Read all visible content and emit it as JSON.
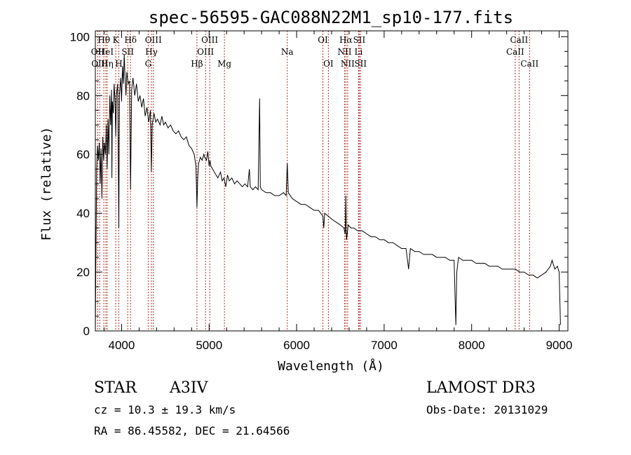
{
  "chart_data": {
    "type": "line",
    "title": "spec-56595-GAC088N22M1_sp10-177.fits",
    "xlabel": "Wavelength (Å)",
    "ylabel": "Flux (relative)",
    "xlim": [
      3700,
      9100
    ],
    "ylim": [
      0,
      102
    ],
    "x_ticks": [
      4000,
      5000,
      6000,
      7000,
      8000,
      9000
    ],
    "y_ticks": [
      0,
      20,
      40,
      60,
      80,
      100
    ],
    "series": [
      {
        "name": "flux",
        "points": [
          [
            3700,
            0
          ],
          [
            3705,
            20
          ],
          [
            3715,
            55
          ],
          [
            3725,
            63
          ],
          [
            3735,
            58
          ],
          [
            3745,
            64
          ],
          [
            3755,
            50
          ],
          [
            3765,
            62
          ],
          [
            3775,
            45
          ],
          [
            3785,
            66
          ],
          [
            3795,
            58
          ],
          [
            3805,
            64
          ],
          [
            3815,
            60
          ],
          [
            3825,
            70
          ],
          [
            3835,
            55
          ],
          [
            3845,
            72
          ],
          [
            3855,
            60
          ],
          [
            3865,
            80
          ],
          [
            3875,
            70
          ],
          [
            3885,
            82
          ],
          [
            3889,
            52
          ],
          [
            3895,
            78
          ],
          [
            3905,
            74
          ],
          [
            3915,
            84
          ],
          [
            3925,
            78
          ],
          [
            3933,
            66
          ],
          [
            3940,
            80
          ],
          [
            3955,
            84
          ],
          [
            3968,
            35
          ],
          [
            3975,
            80
          ],
          [
            3990,
            86
          ],
          [
            4000,
            78
          ],
          [
            4010,
            90
          ],
          [
            4020,
            84
          ],
          [
            4030,
            94
          ],
          [
            4040,
            86
          ],
          [
            4050,
            80
          ],
          [
            4060,
            88
          ],
          [
            4075,
            84
          ],
          [
            4090,
            85
          ],
          [
            4102,
            48
          ],
          [
            4115,
            82
          ],
          [
            4130,
            86
          ],
          [
            4150,
            80
          ],
          [
            4170,
            84
          ],
          [
            4190,
            78
          ],
          [
            4210,
            80
          ],
          [
            4230,
            76
          ],
          [
            4250,
            79
          ],
          [
            4270,
            73
          ],
          [
            4290,
            76
          ],
          [
            4310,
            71
          ],
          [
            4330,
            75
          ],
          [
            4340,
            54
          ],
          [
            4350,
            70
          ],
          [
            4370,
            74
          ],
          [
            4390,
            71
          ],
          [
            4410,
            72
          ],
          [
            4440,
            70
          ],
          [
            4460,
            73
          ],
          [
            4480,
            70
          ],
          [
            4500,
            71
          ],
          [
            4530,
            69
          ],
          [
            4560,
            70
          ],
          [
            4590,
            68
          ],
          [
            4620,
            67
          ],
          [
            4650,
            68
          ],
          [
            4680,
            66
          ],
          [
            4710,
            65
          ],
          [
            4740,
            66
          ],
          [
            4770,
            63
          ],
          [
            4800,
            62
          ],
          [
            4830,
            60
          ],
          [
            4850,
            56
          ],
          [
            4861,
            42
          ],
          [
            4870,
            52
          ],
          [
            4880,
            57
          ],
          [
            4900,
            59
          ],
          [
            4920,
            58
          ],
          [
            4940,
            60
          ],
          [
            4950,
            59
          ],
          [
            4970,
            58
          ],
          [
            4985,
            61
          ],
          [
            5000,
            56
          ],
          [
            5010,
            58
          ],
          [
            5020,
            56
          ],
          [
            5040,
            55
          ],
          [
            5060,
            54
          ],
          [
            5080,
            53
          ],
          [
            5100,
            52
          ],
          [
            5130,
            54
          ],
          [
            5150,
            51
          ],
          [
            5170,
            52
          ],
          [
            5190,
            49
          ],
          [
            5210,
            53
          ],
          [
            5230,
            51
          ],
          [
            5260,
            52
          ],
          [
            5290,
            50
          ],
          [
            5320,
            51
          ],
          [
            5350,
            50
          ],
          [
            5380,
            49
          ],
          [
            5410,
            50
          ],
          [
            5440,
            49
          ],
          [
            5460,
            55
          ],
          [
            5470,
            49
          ],
          [
            5500,
            48
          ],
          [
            5530,
            49
          ],
          [
            5560,
            48
          ],
          [
            5577,
            79
          ],
          [
            5585,
            49
          ],
          [
            5600,
            48
          ],
          [
            5650,
            47
          ],
          [
            5700,
            47
          ],
          [
            5750,
            46
          ],
          [
            5800,
            46
          ],
          [
            5850,
            47
          ],
          [
            5880,
            46
          ],
          [
            5893,
            57
          ],
          [
            5905,
            47
          ],
          [
            5950,
            45
          ],
          [
            6000,
            44
          ],
          [
            6050,
            43
          ],
          [
            6100,
            43
          ],
          [
            6150,
            42
          ],
          [
            6200,
            41
          ],
          [
            6250,
            41
          ],
          [
            6300,
            39
          ],
          [
            6310,
            35
          ],
          [
            6320,
            40
          ],
          [
            6363,
            39
          ],
          [
            6400,
            38
          ],
          [
            6450,
            37
          ],
          [
            6500,
            36
          ],
          [
            6540,
            35
          ],
          [
            6555,
            33
          ],
          [
            6563,
            46
          ],
          [
            6570,
            31
          ],
          [
            6590,
            36
          ],
          [
            6620,
            35
          ],
          [
            6650,
            35
          ],
          [
            6700,
            34
          ],
          [
            6750,
            34
          ],
          [
            6800,
            33
          ],
          [
            6850,
            32
          ],
          [
            6900,
            32
          ],
          [
            6950,
            31
          ],
          [
            7000,
            31
          ],
          [
            7050,
            30
          ],
          [
            7100,
            30
          ],
          [
            7150,
            29
          ],
          [
            7200,
            28
          ],
          [
            7250,
            28
          ],
          [
            7280,
            21
          ],
          [
            7300,
            28
          ],
          [
            7350,
            27
          ],
          [
            7400,
            27
          ],
          [
            7450,
            26
          ],
          [
            7500,
            26
          ],
          [
            7550,
            26
          ],
          [
            7600,
            25
          ],
          [
            7650,
            25
          ],
          [
            7700,
            25
          ],
          [
            7750,
            24
          ],
          [
            7800,
            24
          ],
          [
            7810,
            12
          ],
          [
            7820,
            2
          ],
          [
            7830,
            20
          ],
          [
            7850,
            25
          ],
          [
            7900,
            24
          ],
          [
            7950,
            24
          ],
          [
            8000,
            24
          ],
          [
            8050,
            23
          ],
          [
            8100,
            23
          ],
          [
            8150,
            23
          ],
          [
            8200,
            22
          ],
          [
            8250,
            22
          ],
          [
            8300,
            22
          ],
          [
            8350,
            21
          ],
          [
            8400,
            21
          ],
          [
            8450,
            21
          ],
          [
            8500,
            21
          ],
          [
            8550,
            20
          ],
          [
            8600,
            20
          ],
          [
            8650,
            19
          ],
          [
            8700,
            19
          ],
          [
            8750,
            18
          ],
          [
            8800,
            19
          ],
          [
            8850,
            20
          ],
          [
            8900,
            22
          ],
          [
            8920,
            24
          ],
          [
            8950,
            21
          ],
          [
            8980,
            22
          ],
          [
            9000,
            20
          ],
          [
            9010,
            8
          ],
          [
            9015,
            2
          ]
        ]
      }
    ],
    "spectral_lines": [
      {
        "label": "Hθ",
        "x": 3797,
        "row": 1
      },
      {
        "label": "OII",
        "x": 3727,
        "row": 2
      },
      {
        "label": "OIII",
        "x": 3750,
        "row": 3
      },
      {
        "label": "HeI",
        "x": 3820,
        "row": 2
      },
      {
        "label": "Hη",
        "x": 3835,
        "row": 3
      },
      {
        "label": "K",
        "x": 3933,
        "row": 1
      },
      {
        "label": "SII",
        "x": 4070,
        "row": 2
      },
      {
        "label": "H",
        "x": 3968,
        "row": 3
      },
      {
        "label": "Hδ",
        "x": 4102,
        "row": 1
      },
      {
        "label": "OIII",
        "x": 4363,
        "row": 1
      },
      {
        "label": "Hγ",
        "x": 4341,
        "row": 2
      },
      {
        "label": "G",
        "x": 4304,
        "row": 3
      },
      {
        "label": "Hβ",
        "x": 4861,
        "row": 3
      },
      {
        "label": "OIII",
        "x": 5007,
        "row": 1
      },
      {
        "label": "OIII",
        "x": 4959,
        "row": 2
      },
      {
        "label": "Mg",
        "x": 5175,
        "row": 3
      },
      {
        "label": "Na",
        "x": 5893,
        "row": 2
      },
      {
        "label": "OI",
        "x": 6300,
        "row": 1
      },
      {
        "label": "OI",
        "x": 6363,
        "row": 3
      },
      {
        "label": "Hα",
        "x": 6563,
        "row": 1
      },
      {
        "label": "SII",
        "x": 6716,
        "row": 1
      },
      {
        "label": "NII",
        "x": 6548,
        "row": 2
      },
      {
        "label": "Li",
        "x": 6708,
        "row": 2
      },
      {
        "label": "NII",
        "x": 6583,
        "row": 3
      },
      {
        "label": "SII",
        "x": 6731,
        "row": 3
      },
      {
        "label": "CaII",
        "x": 8542,
        "row": 1
      },
      {
        "label": "CaII",
        "x": 8498,
        "row": 2
      },
      {
        "label": "CaII",
        "x": 8662,
        "row": 3
      }
    ]
  },
  "info": {
    "class": "STAR",
    "subclass": "A3IV",
    "survey": "LAMOST DR3",
    "cz": "cz = 10.3 ± 19.3 km/s",
    "obs_date": "Obs-Date: 20131029",
    "coords": "RA =  86.45582, DEC =  21.64566"
  }
}
